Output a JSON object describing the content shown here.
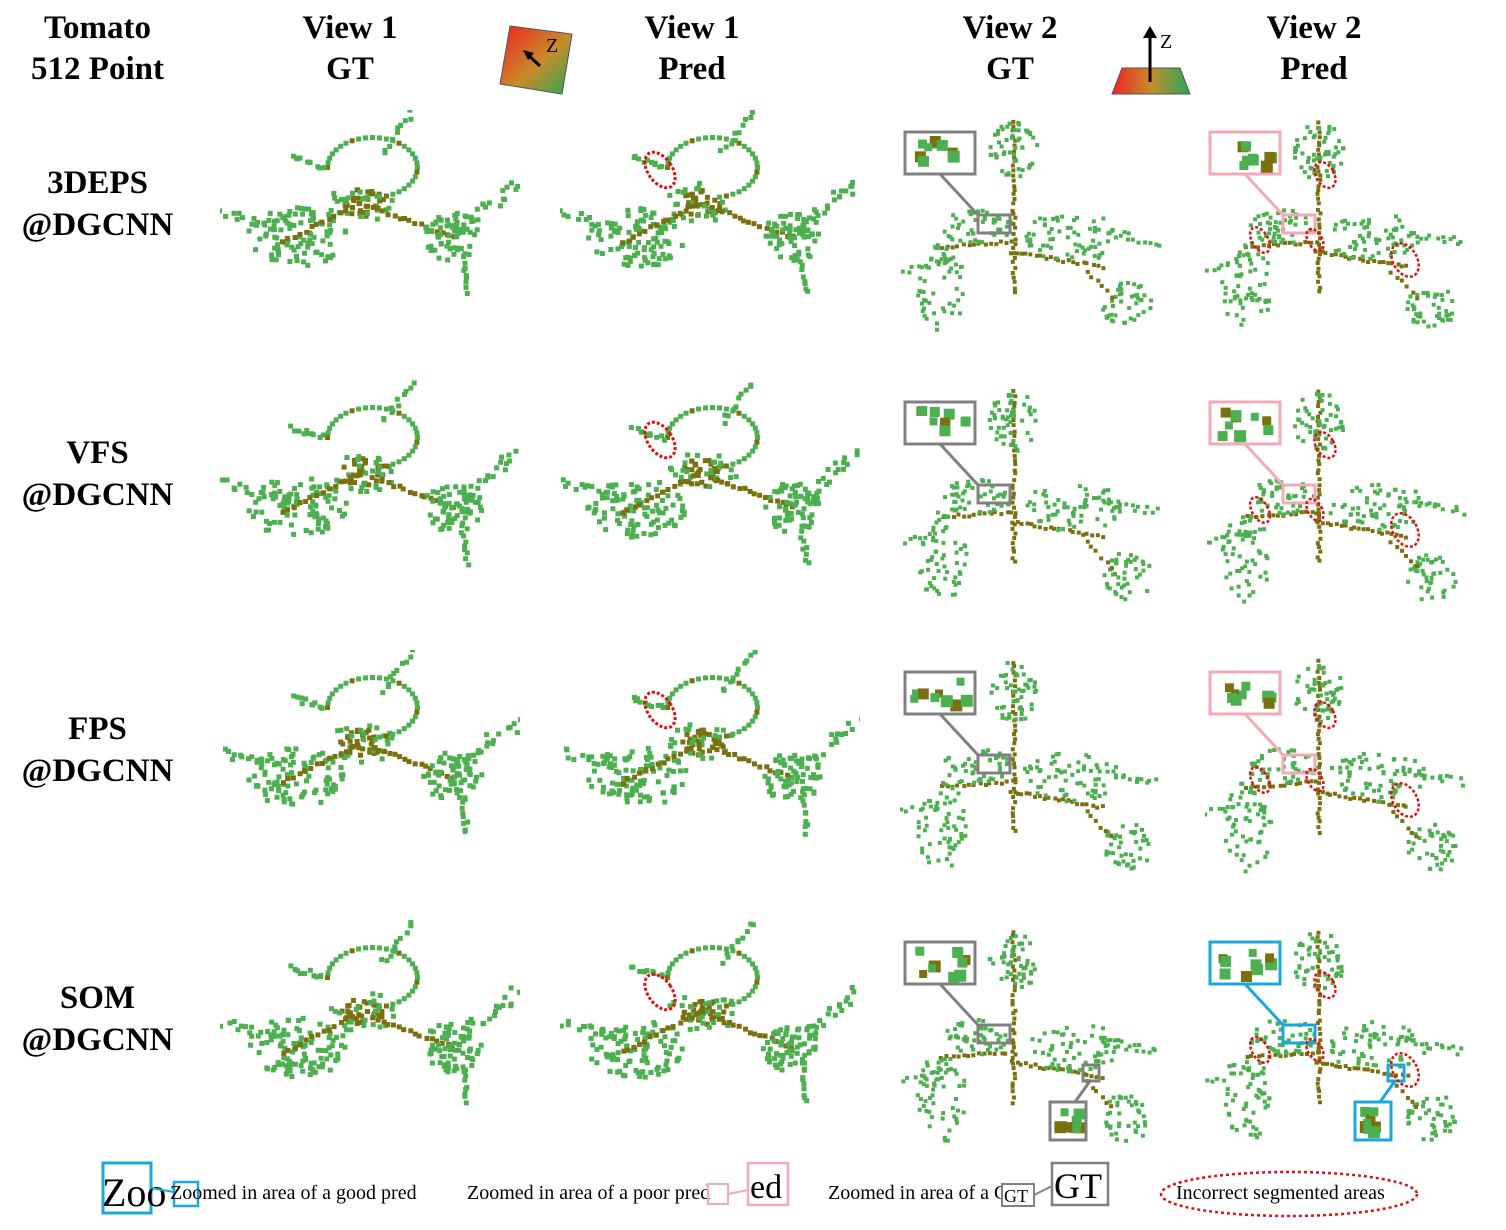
{
  "header": {
    "corner_title": "Tomato\n512 Point",
    "view1_gt": "View 1\nGT",
    "view1_pred": "View 1\nPred",
    "view2_gt": "View 2\nGT",
    "view2_pred": "View 2\nPred",
    "axis_label": "Z"
  },
  "rows": [
    {
      "label": "3DEPS\n@DGCNN"
    },
    {
      "label": "VFS\n@DGCNN"
    },
    {
      "label": "FPS\n@DGCNN"
    },
    {
      "label": "SOM\n@DGCNN"
    }
  ],
  "legend": {
    "good_pred": "Zoomed in area of a good pred",
    "poor_pred": "Zoomed in area of a poor pred",
    "gt": "Zoomed in area of a GT",
    "incorrect": "Incorrect segmented areas",
    "zoom_fragment": "Zoo",
    "pred_fragment": "ed",
    "gt_small": "GT",
    "gt_large": "GT"
  },
  "colors": {
    "leaf": "#4caf50",
    "stem": "#7a7010",
    "good_box": "#1aa7dc",
    "poor_box": "#f2aab4",
    "gt_box": "#808080",
    "error": "#dd1111"
  }
}
